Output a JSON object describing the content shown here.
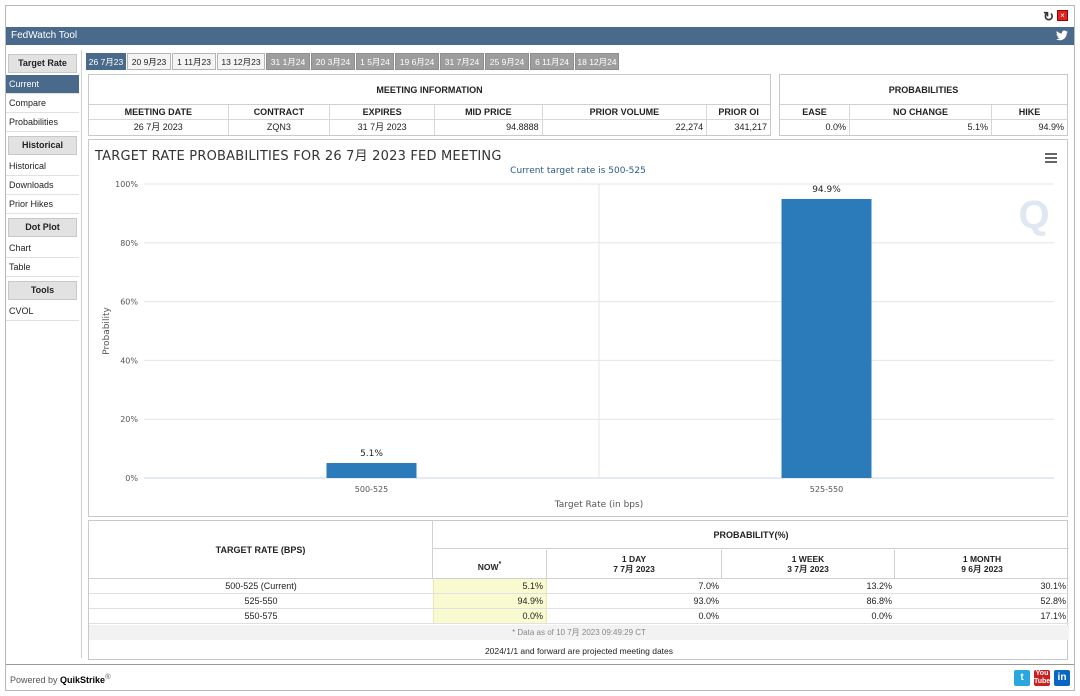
{
  "window": {
    "title": "FedWatch Tool",
    "refresh_icon": "refresh-icon",
    "close_icon": "close-icon",
    "twitter_icon": "twitter-icon"
  },
  "sidebar": {
    "sections": [
      {
        "header": "Target Rate",
        "items": [
          "Current",
          "Compare",
          "Probabilities"
        ]
      },
      {
        "header": "Historical",
        "items": [
          "Historical",
          "Downloads",
          "Prior Hikes"
        ]
      },
      {
        "header": "Dot Plot",
        "items": [
          "Chart",
          "Table"
        ]
      },
      {
        "header": "Tools",
        "items": [
          "CVOL"
        ]
      }
    ],
    "active_item": "Current"
  },
  "tabs": [
    "26 7月23",
    "20 9月23",
    "1 11月23",
    "13 12月23",
    "31 1月24",
    "20 3月24",
    "1 5月24",
    "19 6月24",
    "31 7月24",
    "25 9月24",
    "6 11月24",
    "18 12月24"
  ],
  "meeting_info": {
    "title": "MEETING INFORMATION",
    "headers": [
      "MEETING DATE",
      "CONTRACT",
      "EXPIRES",
      "MID PRICE",
      "PRIOR VOLUME",
      "PRIOR OI"
    ],
    "values": [
      "26 7月 2023",
      "ZQN3",
      "31 7月 2023",
      "94.8888",
      "22,274",
      "341,217"
    ]
  },
  "probabilities": {
    "title": "PROBABILITIES",
    "headers": [
      "EASE",
      "NO CHANGE",
      "HIKE"
    ],
    "values": [
      "0.0%",
      "5.1%",
      "94.9%"
    ]
  },
  "chart_data": {
    "type": "bar",
    "title": "TARGET RATE PROBABILITIES FOR 26 7月 2023 FED MEETING",
    "subtitle": "Current target rate is 500-525",
    "categories": [
      "500-525",
      "525-550"
    ],
    "values": [
      5.1,
      94.9
    ],
    "data_labels": [
      "5.1%",
      "94.9%"
    ],
    "xlabel": "Target Rate (in bps)",
    "ylabel": "Probability",
    "ylim": [
      0,
      100
    ],
    "yticks": [
      "0%",
      "20%",
      "40%",
      "60%",
      "80%",
      "100%"
    ],
    "bar_color": "#2b7bba",
    "grid": true,
    "watermark": "Q",
    "menu_icon": "hamburger-menu-icon"
  },
  "target_table": {
    "left_header": "TARGET RATE (BPS)",
    "prob_header": "PROBABILITY(%)",
    "columns": [
      {
        "line1": "NOW",
        "line2": ""
      },
      {
        "line1": "1 DAY",
        "line2": "7 7月 2023"
      },
      {
        "line1": "1 WEEK",
        "line2": "3 7月 2023"
      },
      {
        "line1": "1 MONTH",
        "line2": "9 6月 2023"
      }
    ],
    "rows": [
      {
        "rate": "500-525 (Current)",
        "now": "5.1%",
        "day": "7.0%",
        "week": "13.2%",
        "month": "30.1%"
      },
      {
        "rate": "525-550",
        "now": "94.9%",
        "day": "93.0%",
        "week": "86.8%",
        "month": "52.8%"
      },
      {
        "rate": "550-575",
        "now": "0.0%",
        "day": "0.0%",
        "week": "0.0%",
        "month": "17.1%"
      }
    ],
    "note": "* Data as of 10 7月 2023 09:49:29 CT",
    "projection_note": "2024/1/1 and forward are projected meeting dates"
  },
  "footer": {
    "powered_prefix": "Powered by ",
    "brand": "QuikStrike",
    "registered": "®",
    "social": [
      "twitter-icon",
      "youtube-icon",
      "linkedin-icon"
    ]
  }
}
